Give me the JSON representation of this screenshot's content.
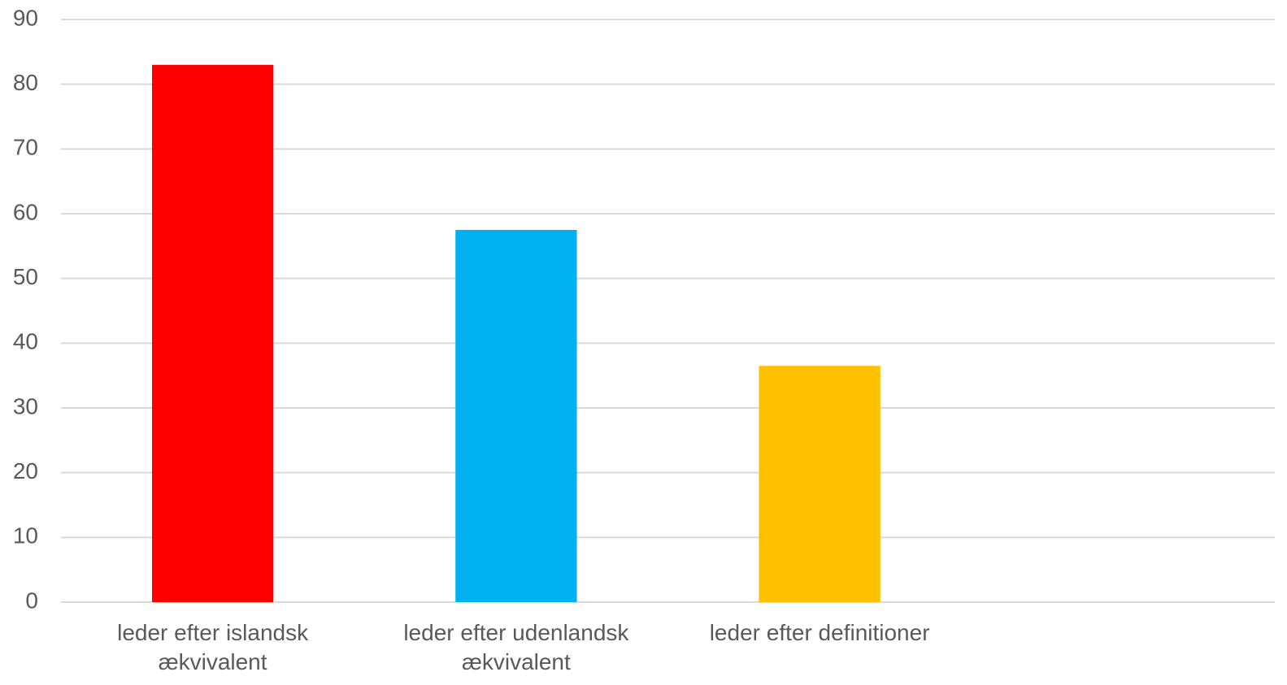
{
  "chart_data": {
    "type": "bar",
    "categories": [
      "leder efter islandsk ækvivalent",
      "leder efter udenlandsk ækvivalent",
      "leder efter definitioner",
      null
    ],
    "values": [
      83,
      57.5,
      36.5,
      null
    ],
    "colors": [
      "#ff0000",
      "#00b0f0",
      "#ffc000",
      null
    ],
    "ylim": [
      0,
      90
    ],
    "yticks": [
      0,
      10,
      20,
      30,
      40,
      50,
      60,
      70,
      80,
      90
    ],
    "grid": true
  }
}
